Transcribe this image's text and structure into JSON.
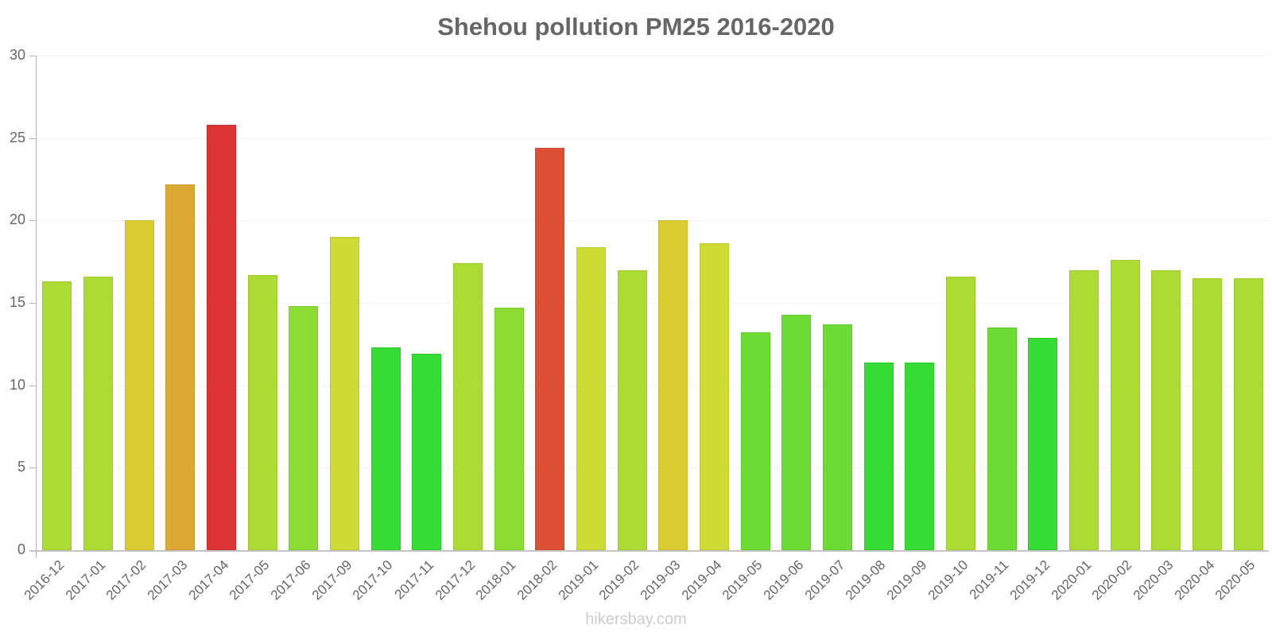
{
  "chart_data": {
    "type": "bar",
    "title": "Shehou pollution PM25 2016-2020",
    "xlabel": "",
    "ylabel": "",
    "ylim": [
      0,
      30
    ],
    "yticks": [
      0,
      5,
      10,
      15,
      20,
      25,
      30
    ],
    "grid": true,
    "legend": null,
    "categories": [
      "2016-12",
      "2017-01",
      "2017-02",
      "2017-03",
      "2017-04",
      "2017-05",
      "2017-06",
      "2017-09",
      "2017-10",
      "2017-11",
      "2017-12",
      "2018-01",
      "2018-02",
      "2019-01",
      "2019-02",
      "2019-03",
      "2019-04",
      "2019-05",
      "2019-06",
      "2019-07",
      "2019-08",
      "2019-09",
      "2019-10",
      "2019-11",
      "2019-12",
      "2020-01",
      "2020-02",
      "2020-03",
      "2020-04",
      "2020-05"
    ],
    "values": [
      16.3,
      16.6,
      20.0,
      22.2,
      25.8,
      16.7,
      14.8,
      19.0,
      12.3,
      11.9,
      17.4,
      14.7,
      24.4,
      18.4,
      17.0,
      20.0,
      18.6,
      13.2,
      14.3,
      13.7,
      11.4,
      11.4,
      16.6,
      13.5,
      12.9,
      17.0,
      17.6,
      17.0,
      16.5,
      16.5
    ],
    "colors": [
      "#acdc34",
      "#acdc34",
      "#dccc34",
      "#dca834",
      "#dc3434",
      "#acdc34",
      "#8cdc34",
      "#ccdc34",
      "#34dc34",
      "#34dc34",
      "#acdc34",
      "#8cdc34",
      "#dc5034",
      "#ccdc34",
      "#acdc34",
      "#dccc34",
      "#ccdc34",
      "#6cdc34",
      "#6cdc34",
      "#6cdc34",
      "#34dc34",
      "#34dc34",
      "#acdc34",
      "#6cdc34",
      "#34dc34",
      "#acdc34",
      "#acdc34",
      "#acdc34",
      "#acdc34",
      "#acdc34"
    ]
  },
  "watermark": "hikersbay.com"
}
